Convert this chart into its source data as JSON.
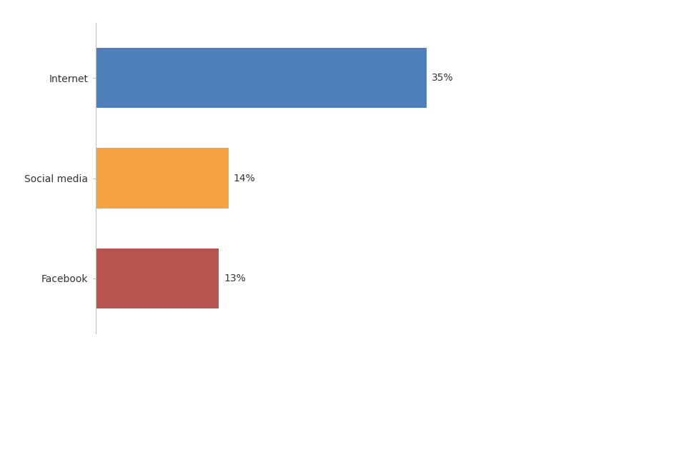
{
  "categories": [
    "Internet",
    "Social media",
    "Facebook"
  ],
  "values": [
    35,
    14,
    13
  ],
  "bar_colors": [
    "#4e7fba",
    "#f5a242",
    "#b85450"
  ],
  "labels": [
    "35%",
    "14%",
    "13%"
  ],
  "background_color": "#ffffff",
  "xlim_max": 45,
  "bar_height": 0.6,
  "label_fontsize": 10,
  "tick_fontsize": 10,
  "spine_color": "#c0c0c0"
}
